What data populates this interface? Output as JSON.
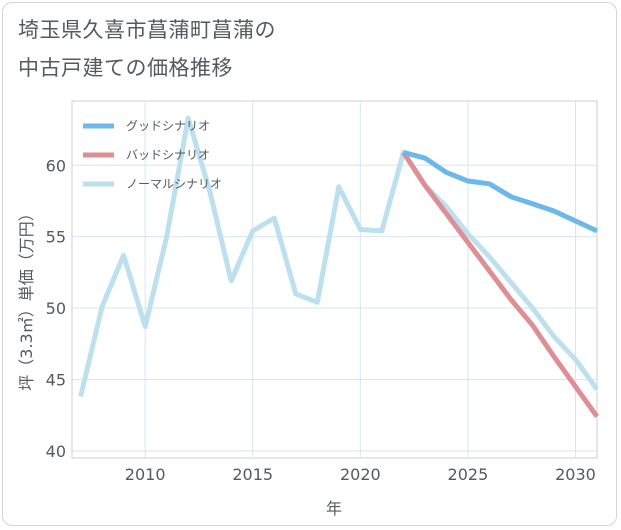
{
  "title_line1": "埼玉県久喜市菖蒲町菖蒲の",
  "title_line2": "中古戸建ての価格推移",
  "chart_data": {
    "type": "line",
    "title": "埼玉県久喜市菖蒲町菖蒲の中古戸建ての価格推移",
    "xlabel": "年",
    "ylabel": "坪（3.3㎡）単価（万円）",
    "xlim": [
      2006.6,
      2031
    ],
    "ylim": [
      39.5,
      64.5
    ],
    "xticks": [
      2010,
      2015,
      2020,
      2025,
      2030
    ],
    "yticks": [
      40,
      45,
      50,
      55,
      60
    ],
    "grid": true,
    "legend_position": "top-left",
    "series": [
      {
        "name": "グッドシナリオ",
        "color": "#6cb9e9",
        "x": [
          2022,
          2023,
          2024,
          2025,
          2026,
          2027,
          2028,
          2029,
          2030,
          2031
        ],
        "values": [
          60.9,
          60.5,
          59.5,
          58.9,
          58.7,
          57.8,
          57.3,
          56.8,
          56.1,
          55.4
        ]
      },
      {
        "name": "バッドシナリオ",
        "color": "#dd8f95",
        "x": [
          2022,
          2023,
          2024,
          2025,
          2026,
          2027,
          2028,
          2029,
          2030,
          2031
        ],
        "values": [
          60.9,
          58.6,
          56.6,
          54.6,
          52.6,
          50.6,
          48.8,
          46.6,
          44.5,
          42.4
        ]
      },
      {
        "name": "ノーマルシナリオ",
        "color": "#bde0ef",
        "x": [
          2007,
          2008,
          2009,
          2010,
          2011,
          2012,
          2013,
          2014,
          2015,
          2016,
          2017,
          2018,
          2019,
          2020,
          2021,
          2022,
          2023,
          2024,
          2025,
          2026,
          2027,
          2028,
          2029,
          2030,
          2031
        ],
        "values": [
          43.8,
          50.1,
          53.7,
          48.7,
          55.0,
          63.3,
          58.2,
          51.9,
          55.4,
          56.3,
          51.0,
          50.4,
          58.5,
          55.5,
          55.4,
          60.9,
          58.6,
          57.1,
          55.2,
          53.6,
          51.8,
          50.0,
          48.0,
          46.4,
          44.3
        ]
      }
    ]
  }
}
